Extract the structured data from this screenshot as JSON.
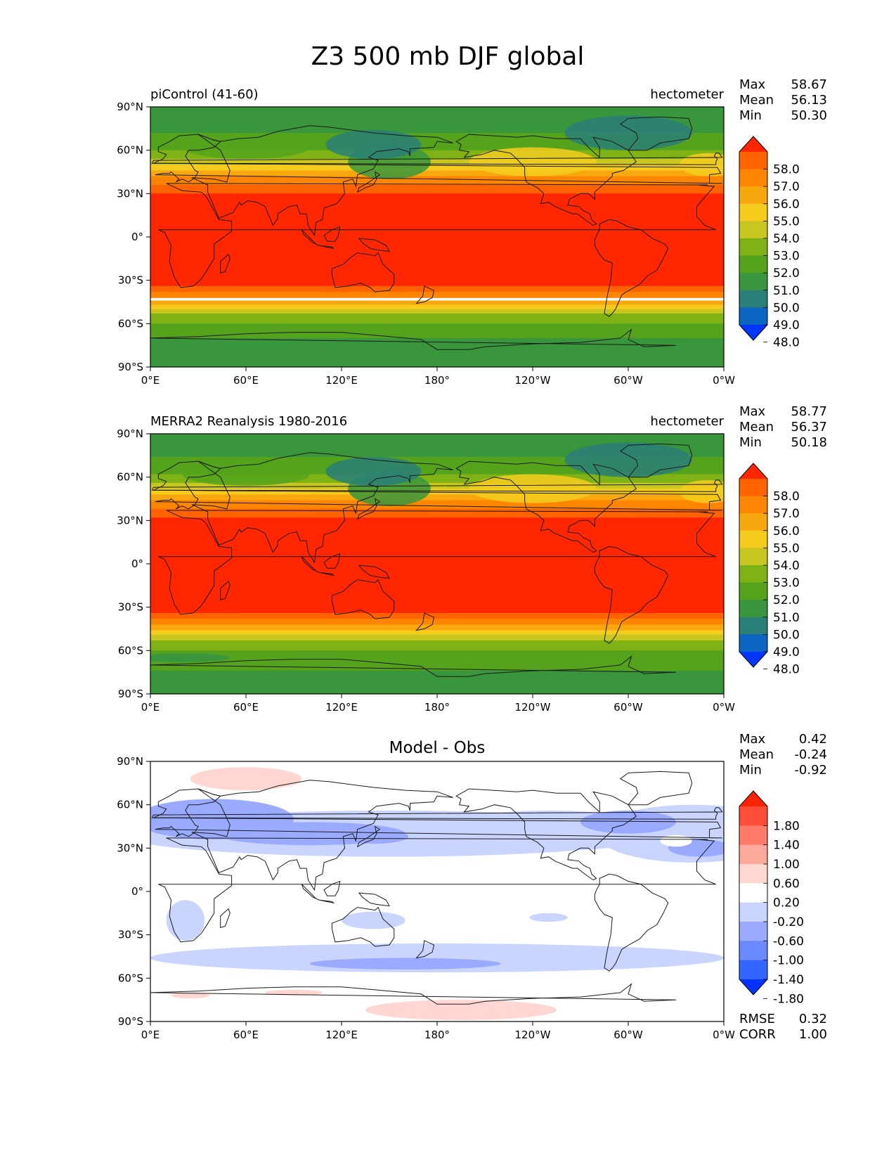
{
  "figure": {
    "title": "Z3 500 mb DJF global"
  },
  "axes": {
    "lat_ticks": [
      "90°N",
      "60°N",
      "30°N",
      "0°",
      "30°S",
      "60°S",
      "90°S"
    ],
    "lon_ticks": [
      "0°E",
      "60°E",
      "120°E",
      "180°",
      "120°W",
      "60°W",
      "0°W"
    ]
  },
  "colors": {
    "abs_levels": [
      "#0036ff",
      "#0b66c2",
      "#2a7f78",
      "#3a963c",
      "#55a31c",
      "#7fb214",
      "#c9c71f",
      "#f5cc1e",
      "#f9a70e",
      "#fd8500",
      "#ff6200",
      "#ff2600"
    ],
    "diff_levels": [
      "#0033ff",
      "#3366ff",
      "#6b8aff",
      "#9aabff",
      "#cad5ff",
      "#ffffff",
      "#ffd6d1",
      "#ffa89c",
      "#ff7a68",
      "#ff4d38",
      "#ff2200"
    ],
    "coastline": "#1a1a1a"
  },
  "panels": [
    {
      "label_left": "piControl (41-60)",
      "label_right": "hectometer",
      "stats": [
        {
          "name": "Max",
          "value": "58.67"
        },
        {
          "name": "Mean",
          "value": "56.13"
        },
        {
          "name": "Min",
          "value": "50.30"
        }
      ],
      "colorbar_labels": [
        "58.0",
        "57.0",
        "56.0",
        "55.0",
        "54.0",
        "53.0",
        "52.0",
        "51.0",
        "50.0",
        "49.0",
        "48.0"
      ]
    },
    {
      "label_left": "MERRA2 Reanalysis 1980-2016",
      "label_right": "hectometer",
      "stats": [
        {
          "name": "Max",
          "value": "58.77"
        },
        {
          "name": "Mean",
          "value": "56.37"
        },
        {
          "name": "Min",
          "value": "50.18"
        }
      ],
      "colorbar_labels": [
        "58.0",
        "57.0",
        "56.0",
        "55.0",
        "54.0",
        "53.0",
        "52.0",
        "51.0",
        "50.0",
        "49.0",
        "48.0"
      ]
    },
    {
      "title": "Model - Obs",
      "stats": [
        {
          "name": "Max",
          "value": "0.42"
        },
        {
          "name": "Mean",
          "value": "-0.24"
        },
        {
          "name": "Min",
          "value": "-0.92"
        }
      ],
      "colorbar_labels": [
        "1.80",
        "1.40",
        "1.00",
        "0.60",
        "0.20",
        "-0.20",
        "-0.60",
        "-1.00",
        "-1.40",
        "-1.80"
      ],
      "extra_stats": [
        {
          "name": "RMSE",
          "value": "0.32"
        },
        {
          "name": "CORR",
          "value": "1.00"
        }
      ]
    }
  ]
}
